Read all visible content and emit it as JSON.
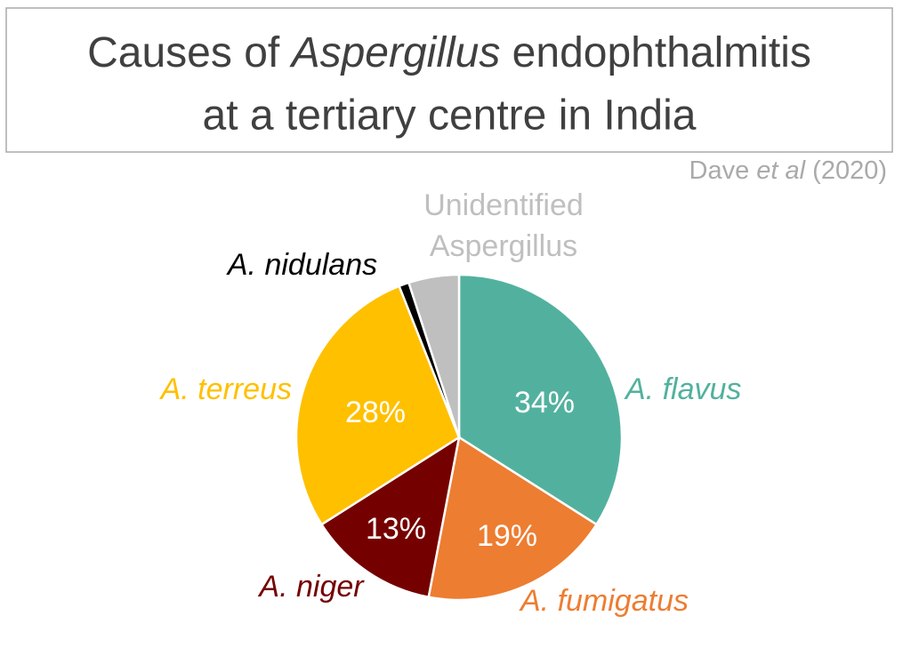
{
  "chart_data": {
    "type": "pie",
    "title": [
      "Causes of ",
      "Aspergillus",
      " endophthalmitis",
      "at a tertiary centre in India"
    ],
    "source": [
      "Dave ",
      "et al",
      " (2020)"
    ],
    "categories": [
      "A. flavus",
      "A. fumigatus",
      "A. niger",
      "A. terreus",
      "A. nidulans",
      "Unidentified Aspergillus"
    ],
    "values": [
      34,
      19,
      13,
      28,
      1,
      5
    ],
    "value_labels": [
      "34%",
      "19%",
      "13%",
      "28%",
      null,
      null
    ],
    "colors": [
      "#52b19e",
      "#ed7d31",
      "#750000",
      "#ffc000",
      "#000000",
      "#bfbfbf"
    ]
  }
}
